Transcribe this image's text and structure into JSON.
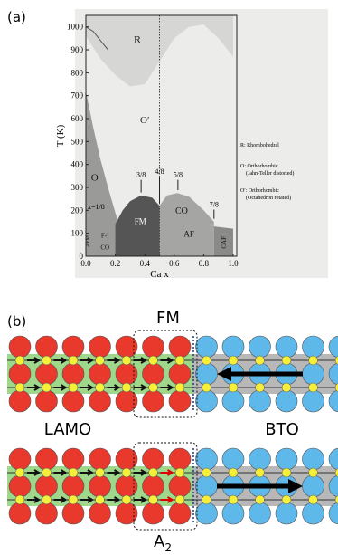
{
  "panel_a": {
    "label": "(a)",
    "ylabel": "T (K)",
    "xlabel": "Ca x",
    "xlim": [
      0,
      1
    ],
    "ylim": [
      0,
      1050
    ],
    "xticks": [
      {
        "value": 0,
        "label": "0.0"
      },
      {
        "value": 0.2,
        "label": "0.2"
      },
      {
        "value": 0.4,
        "label": "0.4"
      },
      {
        "value": 0.6,
        "label": "0.6"
      },
      {
        "value": 0.8,
        "label": "0.8"
      },
      {
        "value": 1,
        "label": "1.0"
      }
    ],
    "yticks": [
      0,
      100,
      200,
      300,
      400,
      500,
      600,
      700,
      800,
      900,
      1000
    ],
    "regions": [
      "R",
      "O′",
      "O",
      "FM",
      "CO",
      "AF",
      "CAF",
      "CO",
      "F-I",
      "AFM"
    ],
    "fractions": [
      "x=1/8",
      "3/8",
      "4/8",
      "5/8",
      "7/8"
    ],
    "legend": [
      "R: Rhombohedral",
      "O: Orthorhombic",
      "(Jahn-Teller distorted)",
      "O′: Orthorhombic",
      "(Octahedron rotated)"
    ]
  },
  "panel_b": {
    "label": "(b)",
    "top_label": "FM",
    "left_label": "LAMO",
    "right_label": "BTO",
    "bottom_label": {
      "text": "A",
      "subscript": "2"
    }
  }
}
